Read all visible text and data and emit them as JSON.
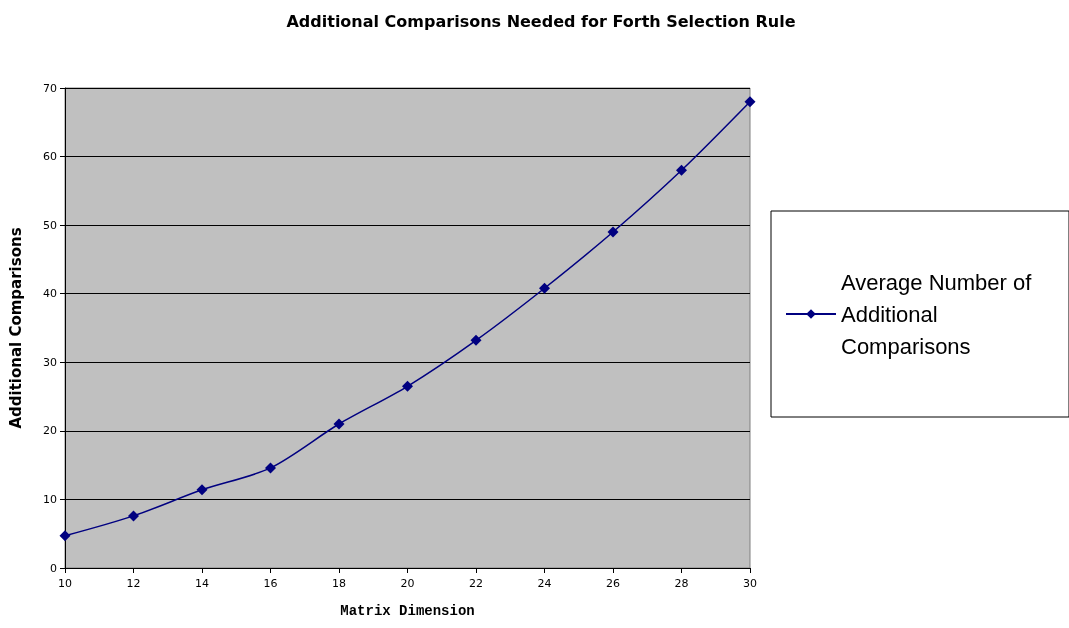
{
  "chart_data": {
    "type": "line",
    "title": "Additional Comparisons Needed for Forth Selection Rule",
    "xlabel": "Matrix Dimension",
    "ylabel": "Additional Comparisons",
    "x": [
      10,
      12,
      14,
      16,
      18,
      20,
      22,
      24,
      26,
      28,
      30
    ],
    "series": [
      {
        "name": "Average Number of Additional Comparisons",
        "color": "#000080",
        "values": [
          4.7,
          7.6,
          11.4,
          14.6,
          21,
          26.5,
          33.2,
          40.8,
          49,
          58,
          68
        ]
      }
    ],
    "xlim": [
      10,
      30
    ],
    "xticks": [
      10,
      12,
      14,
      16,
      18,
      20,
      22,
      24,
      26,
      28,
      30
    ],
    "ylim": [
      0,
      70
    ],
    "yticks": [
      0,
      10,
      20,
      30,
      40,
      50,
      60,
      70
    ],
    "grid": "y",
    "legend": "right",
    "marker": "diamond",
    "line_style": "solid"
  }
}
